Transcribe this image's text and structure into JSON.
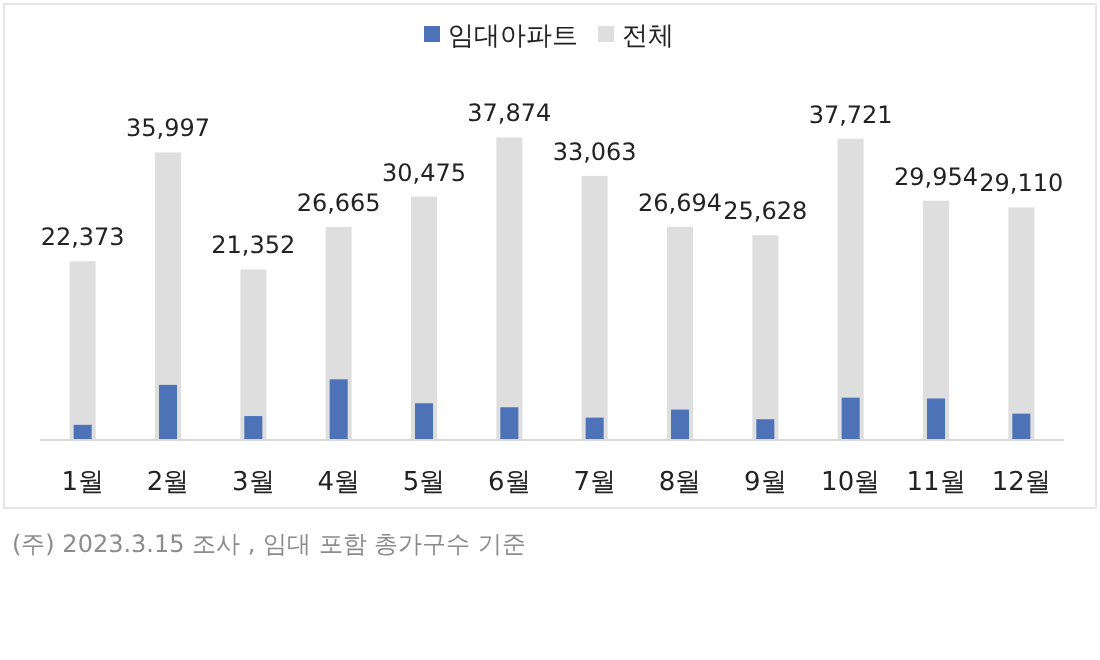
{
  "chart_data": {
    "type": "bar",
    "categories": [
      "1월",
      "2월",
      "3월",
      "4월",
      "5월",
      "6월",
      "7월",
      "8월",
      "9월",
      "10월",
      "11월",
      "12월"
    ],
    "series": [
      {
        "name": "전체",
        "color": "#dedede",
        "values": [
          22373,
          35997,
          21352,
          26665,
          30475,
          37874,
          33063,
          26694,
          25628,
          37721,
          29954,
          29110
        ],
        "value_labels": [
          "22,373",
          "35,997",
          "21,352",
          "26,665",
          "30,475",
          "37,874",
          "33,063",
          "26,694",
          "25,628",
          "37,721",
          "29,954",
          "29,110"
        ]
      },
      {
        "name": "임대아파트",
        "color": "#4e72b8",
        "values": [
          1900,
          6900,
          3000,
          7600,
          4600,
          4100,
          2800,
          3800,
          2600,
          5300,
          5200,
          3300
        ]
      }
    ],
    "tick_labels": "x",
    "legend": "top",
    "annotations": [
      "(주) 2023.3.15 조사 , 임대 포함 총가구수 기준"
    ]
  }
}
